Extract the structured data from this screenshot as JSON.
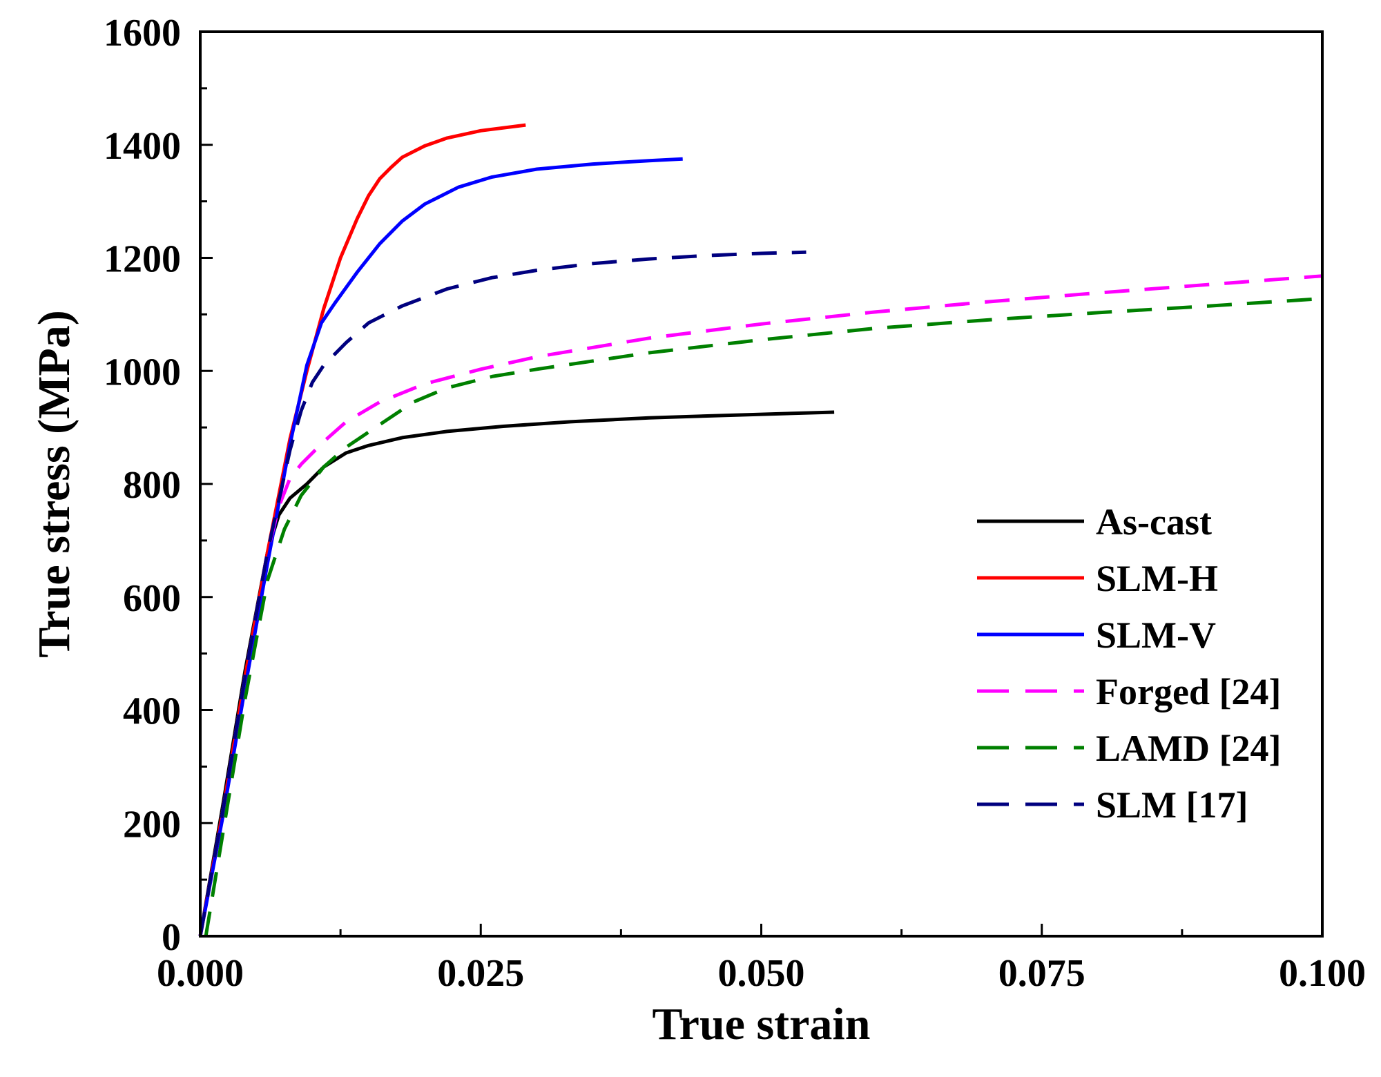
{
  "chart_data": {
    "type": "line",
    "title": "",
    "xlabel": "True strain",
    "ylabel": "True stress (MPa)",
    "xlim": [
      0,
      0.1
    ],
    "ylim": [
      0,
      1600
    ],
    "xticks": [
      0,
      0.025,
      0.05,
      0.075,
      0.1
    ],
    "xtick_labels": [
      "0.000",
      "0.025",
      "0.050",
      "0.075",
      "0.100"
    ],
    "yticks": [
      0,
      200,
      400,
      600,
      800,
      1000,
      1200,
      1400,
      1600
    ],
    "ytick_labels": [
      "0",
      "200",
      "400",
      "600",
      "800",
      "1000",
      "1200",
      "1400",
      "1600"
    ],
    "grid": false,
    "legend_position": "center-right",
    "series": [
      {
        "name": "As-cast",
        "color": "#000000",
        "dash": "solid",
        "x": [
          0,
          0.002,
          0.004,
          0.006,
          0.007,
          0.008,
          0.0095,
          0.011,
          0.013,
          0.015,
          0.018,
          0.022,
          0.027,
          0.033,
          0.04,
          0.048,
          0.0565
        ],
        "y": [
          0,
          230,
          470,
          680,
          745,
          775,
          800,
          830,
          855,
          868,
          882,
          893,
          902,
          910,
          917,
          922,
          927
        ]
      },
      {
        "name": "SLM-H",
        "color": "#ff0000",
        "dash": "solid",
        "x": [
          0,
          0.002,
          0.004,
          0.006,
          0.008,
          0.0095,
          0.011,
          0.0125,
          0.014,
          0.015,
          0.016,
          0.017,
          0.018,
          0.02,
          0.022,
          0.025,
          0.029
        ],
        "y": [
          0,
          220,
          460,
          680,
          880,
          1000,
          1110,
          1200,
          1270,
          1310,
          1340,
          1360,
          1378,
          1398,
          1412,
          1425,
          1435
        ]
      },
      {
        "name": "SLM-V",
        "color": "#0000ff",
        "dash": "solid",
        "x": [
          0,
          0.002,
          0.004,
          0.006,
          0.008,
          0.0095,
          0.0108,
          0.012,
          0.014,
          0.016,
          0.018,
          0.02,
          0.023,
          0.026,
          0.03,
          0.035,
          0.04,
          0.043
        ],
        "y": [
          0,
          210,
          440,
          660,
          870,
          1010,
          1085,
          1120,
          1175,
          1225,
          1265,
          1295,
          1325,
          1343,
          1357,
          1366,
          1372,
          1375
        ]
      },
      {
        "name": "Forged [24]",
        "color": "#ff00ff",
        "dash": "dashed",
        "x": [
          0,
          0.002,
          0.004,
          0.006,
          0.007,
          0.008,
          0.009,
          0.011,
          0.013,
          0.016,
          0.02,
          0.025,
          0.03,
          0.04,
          0.05,
          0.06,
          0.07,
          0.08,
          0.09,
          0.1
        ],
        "y": [
          0,
          220,
          460,
          680,
          760,
          810,
          835,
          875,
          910,
          945,
          977,
          1003,
          1025,
          1058,
          1083,
          1104,
          1122,
          1138,
          1153,
          1168
        ]
      },
      {
        "name": "LAMD [24]",
        "color": "#008000",
        "dash": "dashed",
        "x": [
          0.0005,
          0.002,
          0.004,
          0.006,
          0.0075,
          0.009,
          0.011,
          0.013,
          0.016,
          0.019,
          0.022,
          0.026,
          0.03,
          0.04,
          0.05,
          0.06,
          0.07,
          0.08,
          0.09,
          0.1
        ],
        "y": [
          0,
          180,
          420,
          630,
          720,
          780,
          830,
          865,
          905,
          945,
          970,
          990,
          1003,
          1032,
          1055,
          1075,
          1090,
          1103,
          1115,
          1128
        ]
      },
      {
        "name": "SLM [17]",
        "color": "#00007f",
        "dash": "dashed",
        "x": [
          0,
          0.002,
          0.004,
          0.006,
          0.008,
          0.009,
          0.01,
          0.011,
          0.013,
          0.015,
          0.018,
          0.022,
          0.026,
          0.03,
          0.035,
          0.04,
          0.045,
          0.05,
          0.054
        ],
        "y": [
          0,
          220,
          460,
          680,
          860,
          930,
          980,
          1010,
          1050,
          1085,
          1115,
          1145,
          1165,
          1178,
          1190,
          1198,
          1204,
          1208,
          1210
        ]
      }
    ]
  }
}
